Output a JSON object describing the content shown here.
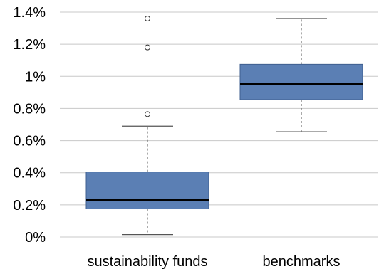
{
  "chart_data": {
    "type": "boxplot",
    "title": "",
    "xlabel": "",
    "ylabel": "",
    "ylim": [
      0,
      1.4
    ],
    "y_unit": "%",
    "yticks": [
      {
        "value": 0,
        "label": "0%"
      },
      {
        "value": 0.2,
        "label": "0.2%"
      },
      {
        "value": 0.4,
        "label": "0.4%"
      },
      {
        "value": 0.6,
        "label": "0.6%"
      },
      {
        "value": 0.8,
        "label": "0.8%"
      },
      {
        "value": 1.0,
        "label": "1%"
      },
      {
        "value": 1.2,
        "label": "1.2%"
      },
      {
        "value": 1.4,
        "label": "1.4%"
      }
    ],
    "grid": true,
    "box_color": "#5b7fb4",
    "box_edge_color": "#3f5f8f",
    "categories": [
      "sustainability funds",
      "benchmarks"
    ],
    "boxes": [
      {
        "category": "sustainability funds",
        "whisker_low": 0.015,
        "q1": 0.175,
        "median": 0.23,
        "q3": 0.405,
        "whisker_high": 0.69,
        "outliers": [
          0.765,
          1.18,
          1.36
        ]
      },
      {
        "category": "benchmarks",
        "whisker_low": 0.655,
        "q1": 0.855,
        "median": 0.955,
        "q3": 1.075,
        "whisker_high": 1.36,
        "outliers": []
      }
    ]
  }
}
